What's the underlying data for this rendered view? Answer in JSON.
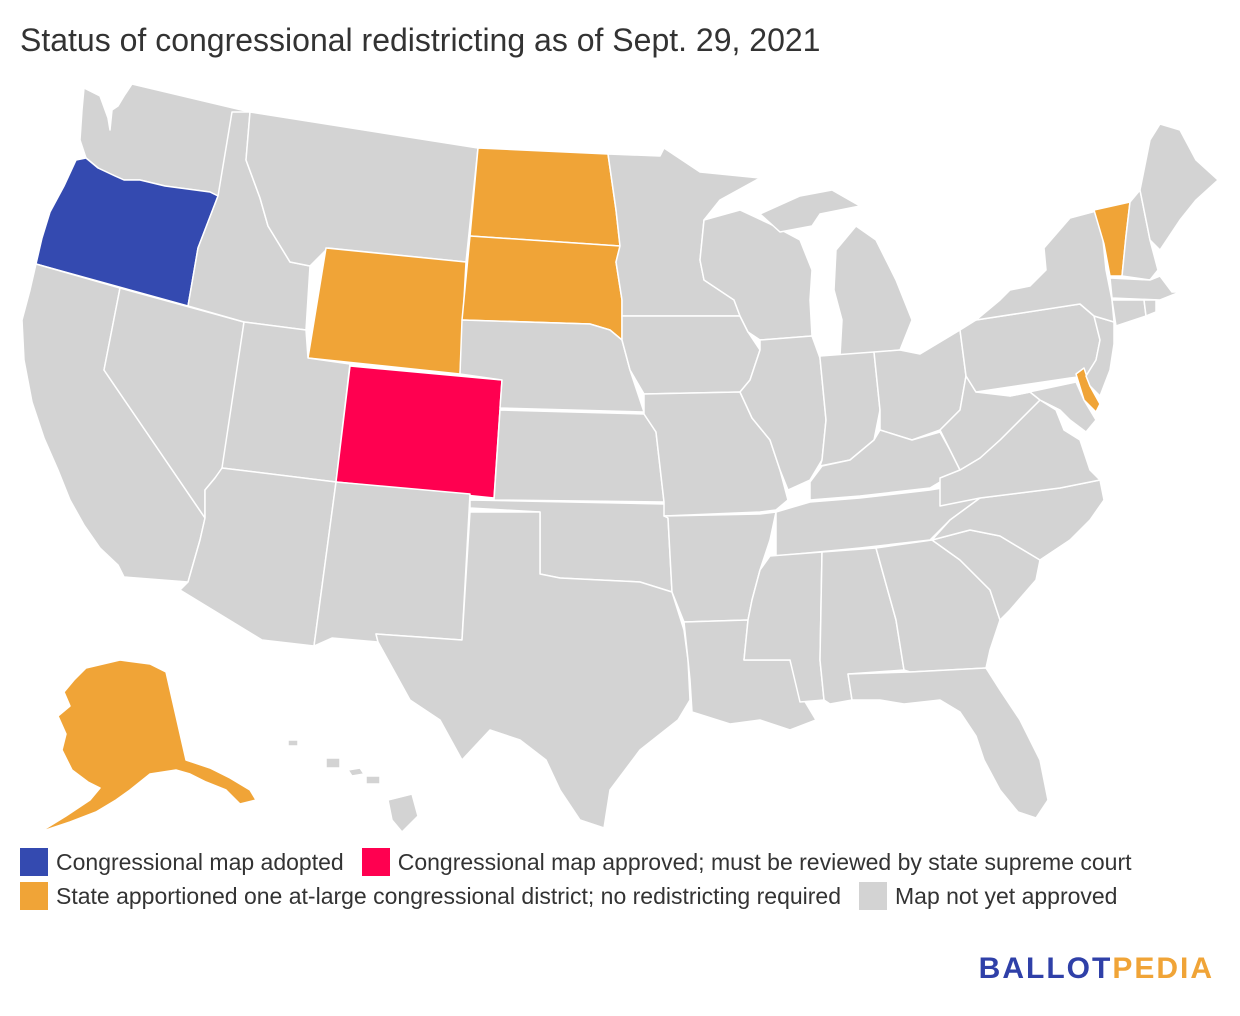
{
  "title": "Status of congressional redistricting as of Sept. 29, 2021",
  "colors": {
    "adopted": "#344ab0",
    "supreme_court_review": "#ff0050",
    "at_large": "#f0a437",
    "not_yet": "#d3d3d3",
    "logo_blue": "#2f40a8",
    "logo_orange": "#f0a437"
  },
  "legend": [
    {
      "key": "adopted",
      "label": "Congressional map adopted"
    },
    {
      "key": "supreme_court_review",
      "label": "Congressional map approved; must be reviewed by state supreme court"
    },
    {
      "key": "at_large",
      "label": "State apportioned one at-large congressional district; no redistricting required"
    },
    {
      "key": "not_yet",
      "label": "Map not yet approved"
    }
  ],
  "states": {
    "Oregon": "adopted",
    "Colorado": "supreme_court_review",
    "Alaska": "at_large",
    "Wyoming": "at_large",
    "North Dakota": "at_large",
    "South Dakota": "at_large",
    "Vermont": "at_large",
    "Delaware": "at_large",
    "Washington": "not_yet",
    "California": "not_yet",
    "Nevada": "not_yet",
    "Idaho": "not_yet",
    "Montana": "not_yet",
    "Utah": "not_yet",
    "Arizona": "not_yet",
    "New Mexico": "not_yet",
    "Texas": "not_yet",
    "Oklahoma": "not_yet",
    "Kansas": "not_yet",
    "Nebraska": "not_yet",
    "Minnesota": "not_yet",
    "Iowa": "not_yet",
    "Missouri": "not_yet",
    "Arkansas": "not_yet",
    "Louisiana": "not_yet",
    "Wisconsin": "not_yet",
    "Illinois": "not_yet",
    "Michigan": "not_yet",
    "Indiana": "not_yet",
    "Ohio": "not_yet",
    "Kentucky": "not_yet",
    "Tennessee": "not_yet",
    "Mississippi": "not_yet",
    "Alabama": "not_yet",
    "Georgia": "not_yet",
    "Florida": "not_yet",
    "South Carolina": "not_yet",
    "North Carolina": "not_yet",
    "Virginia": "not_yet",
    "West Virginia": "not_yet",
    "Maryland": "not_yet",
    "Pennsylvania": "not_yet",
    "New York": "not_yet",
    "New Jersey": "not_yet",
    "Connecticut": "not_yet",
    "Rhode Island": "not_yet",
    "Massachusetts": "not_yet",
    "New Hampshire": "not_yet",
    "Maine": "not_yet",
    "Hawaii": "not_yet"
  },
  "logo": {
    "part1": "BALLOT",
    "part2": "PEDIA"
  }
}
